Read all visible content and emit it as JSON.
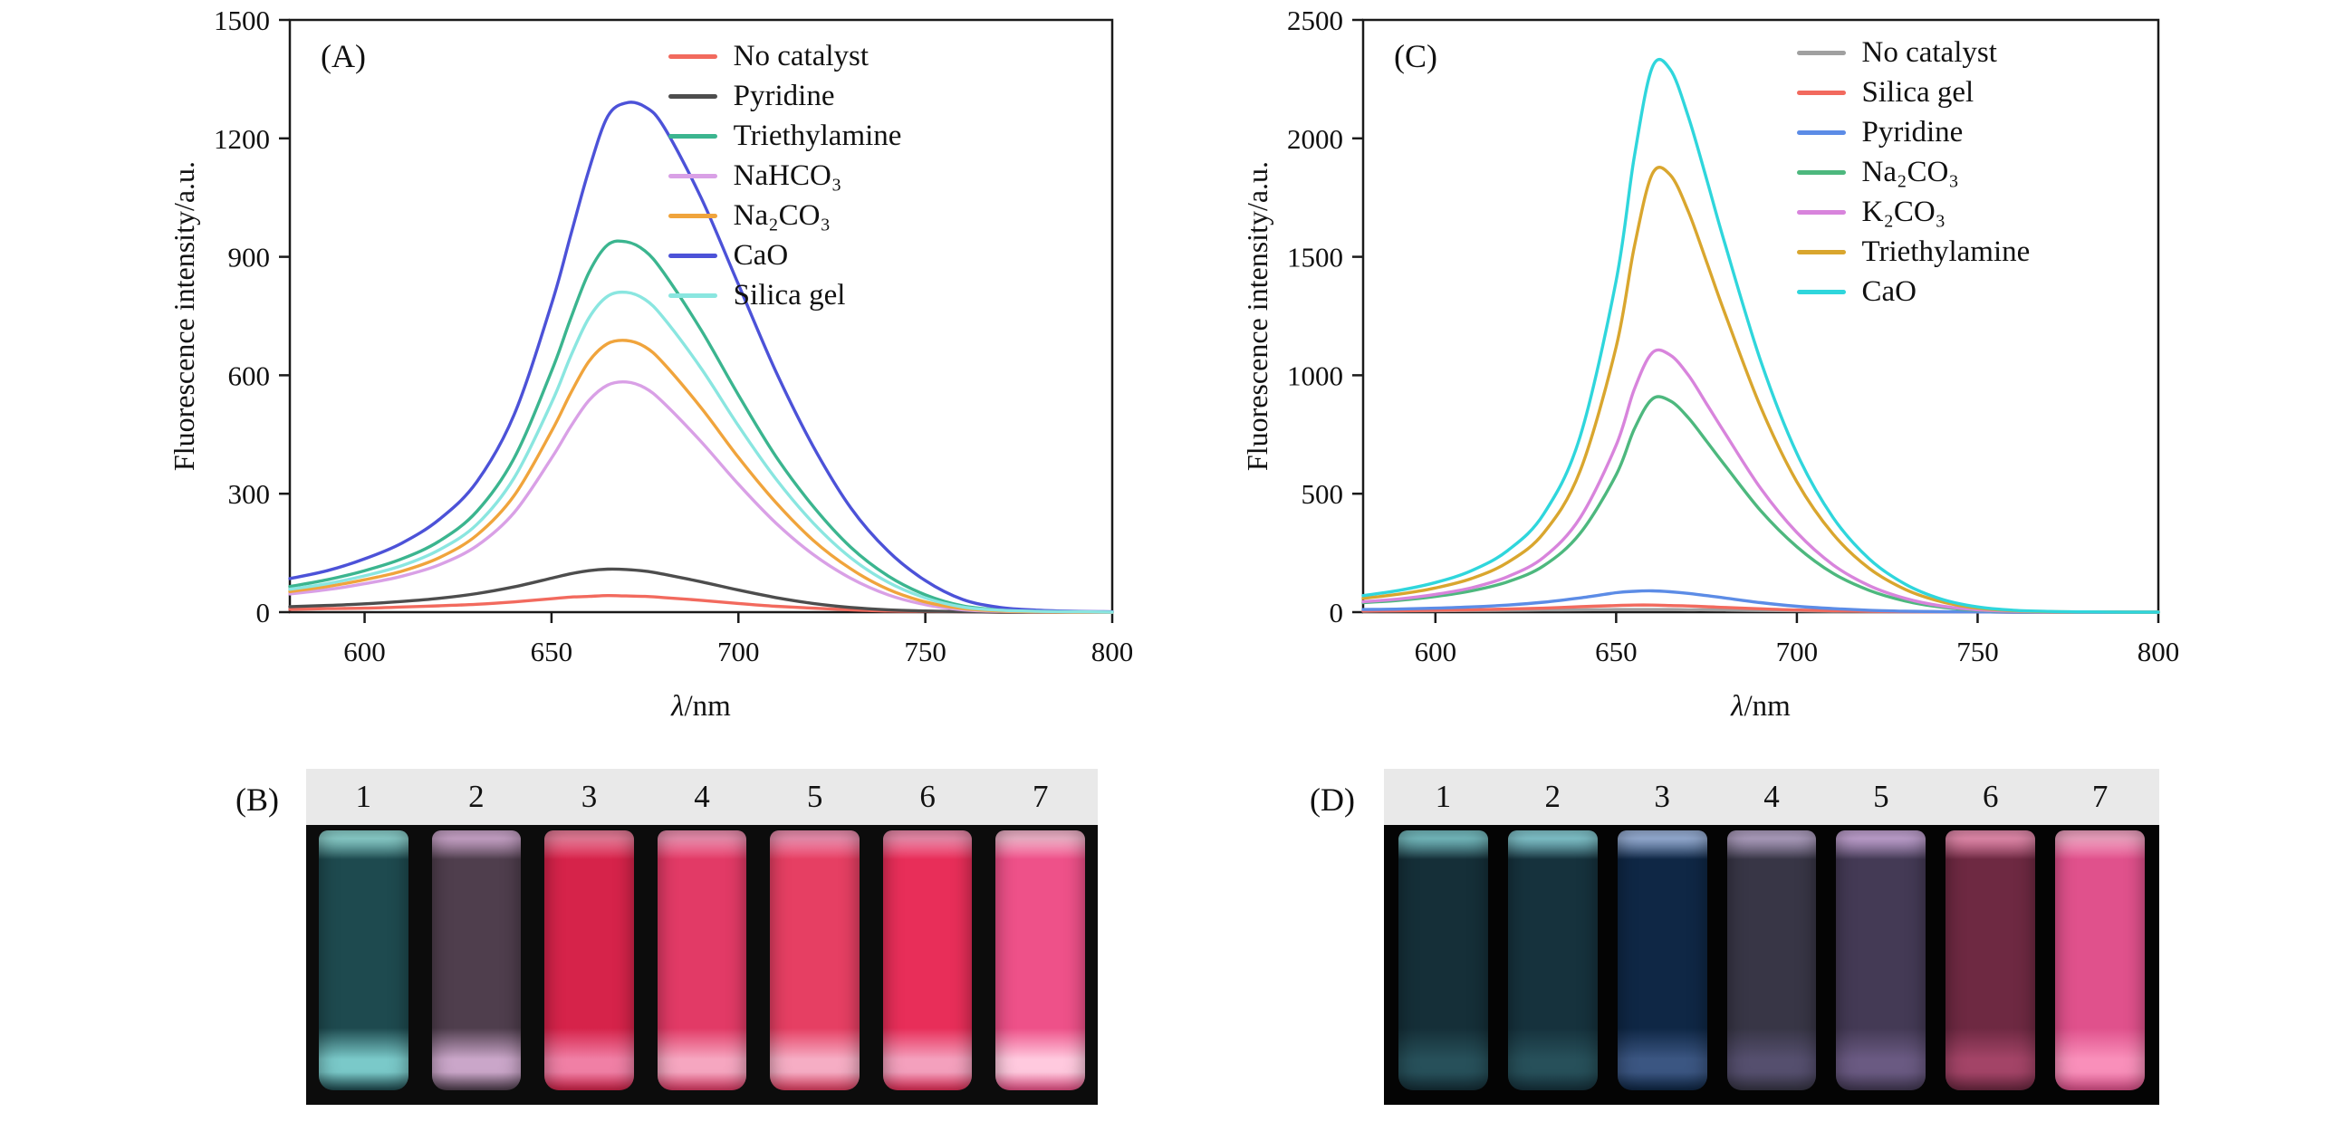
{
  "page": {
    "background": "#ffffff"
  },
  "chart_data": [
    {
      "id": "A",
      "panel_label": "(A)",
      "type": "line",
      "title": "",
      "xlabel": "λ/nm",
      "ylabel": "Fluorescence intensity/a.u.",
      "xlim": [
        580,
        800
      ],
      "ylim": [
        0,
        1500
      ],
      "xticks": [
        600,
        650,
        700,
        750,
        800
      ],
      "yticks": [
        0,
        300,
        600,
        900,
        1200,
        1500
      ],
      "grid": false,
      "legend_position": "inside-top-right",
      "x": [
        580,
        590,
        600,
        610,
        620,
        630,
        640,
        650,
        655,
        660,
        665,
        670,
        675,
        680,
        690,
        700,
        710,
        720,
        730,
        740,
        750,
        760,
        770,
        780,
        790,
        800
      ],
      "series": [
        {
          "name": "No catalyst",
          "color": "#f26a5e",
          "values": [
            7,
            9,
            10,
            13,
            16,
            20,
            26,
            34,
            38,
            40,
            42,
            41,
            40,
            37,
            30,
            22,
            15,
            10,
            6,
            3,
            2,
            1,
            0,
            0,
            0,
            0
          ]
        },
        {
          "name": "Pyridine",
          "color": "#4d4d4d",
          "values": [
            14,
            17,
            21,
            27,
            35,
            47,
            64,
            86,
            97,
            105,
            109,
            108,
            104,
            96,
            77,
            56,
            37,
            22,
            12,
            6,
            3,
            1,
            0,
            0,
            0,
            0
          ]
        },
        {
          "name": "Triethylamine",
          "color": "#3bb58f",
          "values": [
            65,
            82,
            105,
            135,
            180,
            255,
            390,
            610,
            740,
            860,
            930,
            938,
            915,
            860,
            715,
            550,
            395,
            268,
            165,
            92,
            44,
            16,
            6,
            2,
            1,
            0
          ]
        },
        {
          "name": "NaHCO₃",
          "color": "#d9a0e6",
          "values": [
            46,
            57,
            72,
            91,
            120,
            168,
            252,
            390,
            468,
            536,
            575,
            583,
            568,
            530,
            432,
            324,
            226,
            146,
            86,
            44,
            19,
            6,
            2,
            1,
            0,
            0
          ]
        },
        {
          "name": "Na₂CO₃",
          "color": "#f0a43c",
          "values": [
            52,
            65,
            82,
            104,
            138,
            195,
            295,
            458,
            552,
            635,
            680,
            688,
            672,
            630,
            518,
            392,
            278,
            182,
            110,
            58,
            26,
            9,
            3,
            1,
            0,
            0
          ]
        },
        {
          "name": "CaO",
          "color": "#4c52d8",
          "values": [
            85,
            105,
            135,
            175,
            235,
            330,
            500,
            780,
            950,
            1120,
            1255,
            1290,
            1280,
            1230,
            1050,
            830,
            610,
            420,
            265,
            155,
            80,
            32,
            12,
            5,
            2,
            1
          ]
        },
        {
          "name": "Silica gel",
          "color": "#8ae6e0",
          "values": [
            58,
            72,
            92,
            118,
            158,
            222,
            340,
            530,
            645,
            745,
            800,
            810,
            792,
            745,
            618,
            472,
            338,
            226,
            138,
            76,
            36,
            13,
            5,
            2,
            1,
            0
          ]
        }
      ]
    },
    {
      "id": "C",
      "panel_label": "(C)",
      "type": "line",
      "title": "",
      "xlabel": "λ/nm",
      "ylabel": "Fluorescence intensity/a.u.",
      "xlim": [
        580,
        800
      ],
      "ylim": [
        0,
        2500
      ],
      "xticks": [
        600,
        650,
        700,
        750,
        800
      ],
      "yticks": [
        0,
        500,
        1000,
        1500,
        2000,
        2500
      ],
      "grid": false,
      "legend_position": "inside-top-right",
      "x": [
        580,
        590,
        600,
        610,
        620,
        630,
        640,
        650,
        655,
        660,
        665,
        670,
        675,
        680,
        690,
        700,
        710,
        720,
        730,
        740,
        750,
        760,
        770,
        780,
        790,
        800
      ],
      "series": [
        {
          "name": "No catalyst",
          "color": "#a0a0a0",
          "values": [
            4,
            5,
            6,
            7,
            8,
            9,
            10,
            11,
            11,
            11,
            11,
            10,
            10,
            9,
            7,
            6,
            4,
            3,
            2,
            1,
            1,
            0,
            0,
            0,
            0,
            0
          ]
        },
        {
          "name": "Silica gel",
          "color": "#f26a5e",
          "values": [
            5,
            6,
            8,
            10,
            13,
            17,
            23,
            28,
            30,
            30,
            28,
            26,
            23,
            20,
            14,
            9,
            6,
            4,
            2,
            1,
            1,
            0,
            0,
            0,
            0,
            0
          ]
        },
        {
          "name": "Pyridine",
          "color": "#5c8ce6",
          "values": [
            11,
            13,
            17,
            22,
            30,
            42,
            60,
            82,
            88,
            90,
            86,
            79,
            70,
            60,
            40,
            25,
            15,
            8,
            4,
            2,
            1,
            0,
            0,
            0,
            0,
            0
          ]
        },
        {
          "name": "Na₂CO₃",
          "color": "#4db87e",
          "values": [
            40,
            50,
            66,
            90,
            128,
            196,
            332,
            580,
            772,
            900,
            892,
            820,
            722,
            622,
            428,
            276,
            164,
            92,
            47,
            21,
            8,
            3,
            1,
            0,
            0,
            0
          ]
        },
        {
          "name": "K₂CO₃",
          "color": "#d884dc",
          "values": [
            44,
            56,
            75,
            103,
            150,
            232,
            398,
            705,
            940,
            1095,
            1085,
            1000,
            880,
            758,
            522,
            336,
            200,
            112,
            58,
            26,
            10,
            4,
            1,
            0,
            0,
            0
          ]
        },
        {
          "name": "Triethylamine",
          "color": "#d9a62e",
          "values": [
            58,
            76,
            102,
            142,
            210,
            335,
            595,
            1120,
            1540,
            1850,
            1845,
            1690,
            1480,
            1265,
            865,
            550,
            330,
            185,
            96,
            44,
            17,
            6,
            2,
            1,
            0,
            0
          ]
        },
        {
          "name": "CaO",
          "color": "#2fd6dc",
          "values": [
            70,
            92,
            125,
            175,
            260,
            415,
            740,
            1400,
            1920,
            2300,
            2290,
            2090,
            1830,
            1560,
            1060,
            670,
            400,
            225,
            118,
            55,
            22,
            8,
            3,
            1,
            0,
            0
          ]
        }
      ]
    }
  ],
  "photo_b": {
    "label": "(B)",
    "background": "#0c0c0c",
    "numbers": [
      "1",
      "2",
      "3",
      "4",
      "5",
      "6",
      "7"
    ],
    "vials": [
      {
        "rim": "#8fd6d2",
        "body": "#1e4a4f",
        "glow": "#7ac9c9"
      },
      {
        "rim": "#cfa9cf",
        "body": "#4f3e4d",
        "glow": "#caa6c9"
      },
      {
        "rim": "#ef7f9c",
        "body": "#d6234a",
        "glow": "#f07fa5"
      },
      {
        "rim": "#f493b4",
        "body": "#e23a66",
        "glow": "#f6a6c0"
      },
      {
        "rim": "#f493b4",
        "body": "#e63f63",
        "glow": "#f6adc4"
      },
      {
        "rim": "#f48fb0",
        "body": "#e82e59",
        "glow": "#f4a0bd"
      },
      {
        "rim": "#f9b9d0",
        "body": "#ee5189",
        "glow": "#ffc9de"
      }
    ]
  },
  "photo_d": {
    "label": "(D)",
    "background": "#040404",
    "numbers": [
      "1",
      "2",
      "3",
      "4",
      "5",
      "6",
      "7"
    ],
    "vials": [
      {
        "rim": "#79c2c6",
        "body": "#152f38",
        "glow": "#27505a"
      },
      {
        "rim": "#86ccd4",
        "body": "#16323d",
        "glow": "#27505a"
      },
      {
        "rim": "#9cb4dc",
        "body": "#0f2745",
        "glow": "#3b5682"
      },
      {
        "rim": "#b4a4c6",
        "body": "#383646",
        "glow": "#554f6e"
      },
      {
        "rim": "#c6a6d6",
        "body": "#443a55",
        "glow": "#6a5a82"
      },
      {
        "rim": "#ec8fb2",
        "body": "#6e2942",
        "glow": "#a34467"
      },
      {
        "rim": "#f9a8c8",
        "body": "#e0518c",
        "glow": "#f98fba"
      }
    ]
  }
}
